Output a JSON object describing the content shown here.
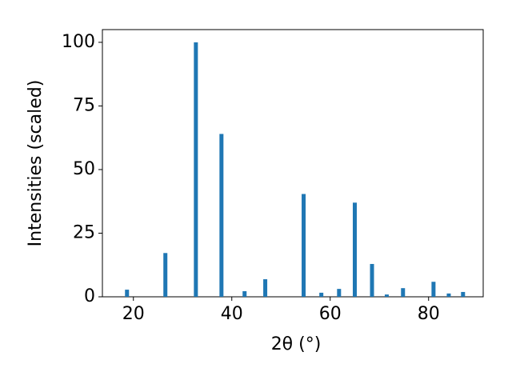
{
  "chart_data": {
    "type": "bar",
    "x_label": "2θ (°)",
    "y_label": "Intensities (scaled)",
    "x": [
      18.7,
      26.5,
      32.7,
      37.9,
      42.6,
      46.8,
      54.6,
      58.2,
      61.8,
      65.0,
      68.5,
      71.5,
      74.8,
      81.0,
      84.1,
      87.0
    ],
    "values": [
      2.8,
      17.2,
      100,
      64,
      2.2,
      6.9,
      40.4,
      1.6,
      3.1,
      37,
      12.9,
      0.9,
      3.4,
      5.9,
      1.3,
      1.9
    ],
    "color": "#1f77b4",
    "xlim": [
      13.7,
      91.1
    ],
    "xticks": [
      20,
      40,
      60,
      80
    ],
    "ylim": [
      0,
      105
    ],
    "yticks": [
      0,
      25,
      50,
      75,
      100
    ]
  }
}
